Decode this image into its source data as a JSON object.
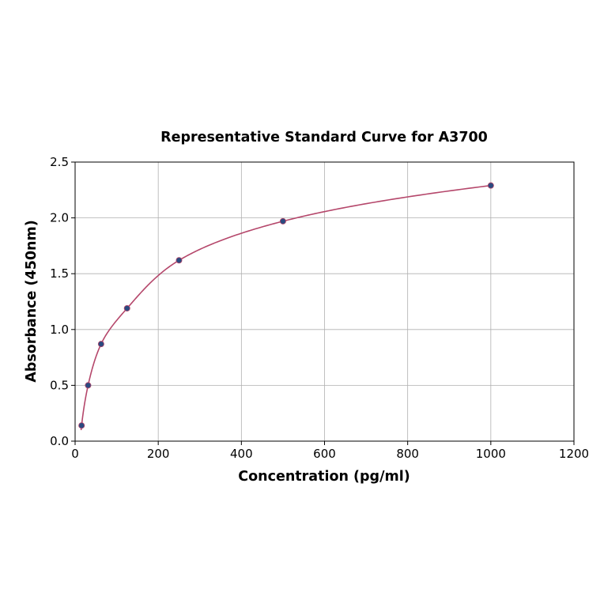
{
  "chart_data": {
    "type": "scatter",
    "title": "Representative Standard Curve for A3700",
    "xlabel": "Concentration (pg/ml)",
    "ylabel": "Absorbance (450nm)",
    "xlim": [
      0,
      1200
    ],
    "ylim": [
      0,
      2.5
    ],
    "xticks": [
      "0",
      "200",
      "400",
      "600",
      "800",
      "1000",
      "1200"
    ],
    "yticks": [
      "0.0",
      "0.5",
      "1.0",
      "1.5",
      "2.0",
      "2.5"
    ],
    "grid": true,
    "x": [
      15.6,
      31.25,
      62.5,
      125,
      250,
      500,
      1000
    ],
    "y": [
      0.14,
      0.5,
      0.87,
      1.19,
      1.62,
      1.97,
      2.29
    ],
    "fit_curve": true,
    "colors": {
      "point": "#2b4a80",
      "curve": "#b5476b",
      "grid": "#b0b0b0"
    }
  }
}
